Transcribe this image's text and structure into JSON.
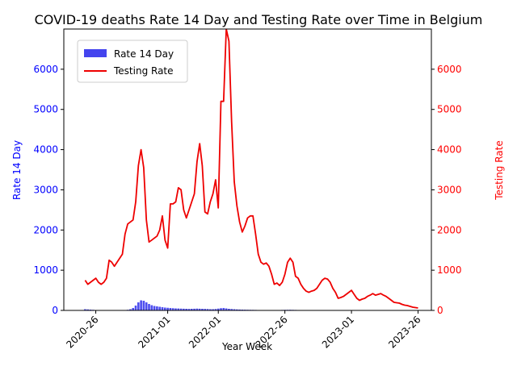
{
  "chart_data": {
    "type": "bar+line",
    "title": "COVID-19 deaths Rate 14 Day and Testing Rate over Time in Belgium",
    "xlabel": "Year Week",
    "ylabel_left": "Rate 14 Day",
    "ylabel_right": "Testing Rate",
    "ylim_left": [
      0,
      7000
    ],
    "ylim_right": [
      0,
      7000
    ],
    "y_ticks": [
      0,
      1000,
      2000,
      3000,
      4000,
      5000,
      6000
    ],
    "x_ticks": [
      {
        "label": "2020-26",
        "pos": 4
      },
      {
        "label": "2021-01",
        "pos": 31
      },
      {
        "label": "2022-01",
        "pos": 50
      },
      {
        "label": "2022-26",
        "pos": 75
      },
      {
        "label": "2023-01",
        "pos": 100
      },
      {
        "label": "2023-26",
        "pos": 125
      }
    ],
    "x_range": [
      -8,
      130
    ],
    "legend_position": "upper-left",
    "series": [
      {
        "name": "Rate 14 Day",
        "kind": "bar",
        "color": "#4444ee",
        "x": [
          0,
          1,
          2,
          3,
          4,
          5,
          6,
          7,
          8,
          9,
          10,
          11,
          12,
          13,
          14,
          15,
          16,
          17,
          18,
          19,
          20,
          21,
          22,
          23,
          24,
          25,
          26,
          27,
          28,
          29,
          30,
          31,
          32,
          33,
          34,
          35,
          36,
          37,
          38,
          39,
          40,
          41,
          42,
          43,
          44,
          45,
          46,
          47,
          48,
          49,
          50,
          51,
          52,
          53,
          54,
          55,
          56,
          57,
          58,
          59,
          60,
          61,
          62,
          63,
          64,
          65,
          66,
          67,
          68,
          69,
          70,
          71,
          72,
          73,
          74,
          75,
          76,
          77,
          78,
          79,
          80,
          81,
          82,
          83,
          84,
          85,
          86,
          87,
          88,
          89,
          90,
          91,
          92,
          93,
          94,
          95,
          96,
          97,
          98,
          99,
          100,
          101,
          102,
          103,
          104,
          105,
          106,
          107,
          108,
          109,
          110,
          111,
          112,
          113,
          114,
          115,
          116,
          117,
          118,
          119,
          120,
          121,
          122,
          123,
          124,
          125
        ],
        "values": [
          30,
          25,
          20,
          15,
          10,
          8,
          6,
          5,
          5,
          5,
          5,
          5,
          5,
          6,
          8,
          10,
          15,
          30,
          60,
          120,
          200,
          250,
          240,
          200,
          160,
          130,
          110,
          100,
          90,
          80,
          70,
          65,
          60,
          55,
          50,
          48,
          45,
          42,
          40,
          38,
          40,
          42,
          45,
          42,
          40,
          38,
          35,
          30,
          30,
          35,
          45,
          55,
          60,
          50,
          40,
          35,
          30,
          25,
          22,
          20,
          18,
          16,
          15,
          14,
          12,
          10,
          8,
          7,
          6,
          6,
          6,
          6,
          8,
          10,
          12,
          14,
          15,
          16,
          14,
          12,
          10,
          8,
          6,
          5,
          5,
          5,
          5,
          5,
          5,
          5,
          5,
          5,
          5,
          5,
          5,
          5,
          5,
          5,
          5,
          5,
          5,
          4,
          4,
          4,
          4,
          4,
          4,
          4,
          4,
          4,
          4,
          4,
          4,
          4,
          4,
          4,
          4,
          4,
          4,
          4,
          4,
          4,
          4,
          4,
          4,
          4
        ]
      },
      {
        "name": "Testing Rate",
        "kind": "line",
        "color": "#ee0000",
        "x": [
          0,
          1,
          2,
          3,
          4,
          5,
          6,
          7,
          8,
          9,
          10,
          11,
          12,
          13,
          14,
          15,
          16,
          17,
          18,
          19,
          20,
          21,
          22,
          23,
          24,
          25,
          26,
          27,
          28,
          29,
          30,
          31,
          32,
          33,
          34,
          35,
          36,
          37,
          38,
          39,
          40,
          41,
          42,
          43,
          44,
          45,
          46,
          47,
          48,
          49,
          50,
          51,
          52,
          53,
          54,
          55,
          56,
          57,
          58,
          59,
          60,
          61,
          62,
          63,
          64,
          65,
          66,
          67,
          68,
          69,
          70,
          71,
          72,
          73,
          74,
          75,
          76,
          77,
          78,
          79,
          80,
          81,
          82,
          83,
          84,
          85,
          86,
          87,
          88,
          89,
          90,
          91,
          92,
          93,
          94,
          95,
          96,
          97,
          98,
          99,
          100,
          101,
          102,
          103,
          104,
          105,
          106,
          107,
          108,
          109,
          110,
          111,
          112,
          113,
          114,
          115,
          116,
          117,
          118,
          119,
          120,
          121,
          122,
          123,
          124,
          125
        ],
        "values": [
          750,
          650,
          700,
          750,
          800,
          700,
          650,
          700,
          800,
          1250,
          1200,
          1100,
          1200,
          1300,
          1400,
          1900,
          2150,
          2200,
          2250,
          2700,
          3600,
          4000,
          3550,
          2250,
          1700,
          1750,
          1800,
          1850,
          2000,
          2350,
          1750,
          1550,
          2650,
          2650,
          2700,
          3050,
          3000,
          2500,
          2300,
          2500,
          2700,
          2900,
          3700,
          4150,
          3600,
          2450,
          2400,
          2700,
          2900,
          3250,
          2550,
          5200,
          5200,
          7000,
          6700,
          4700,
          3200,
          2600,
          2200,
          1950,
          2100,
          2300,
          2350,
          2350,
          1900,
          1400,
          1200,
          1150,
          1180,
          1100,
          900,
          650,
          680,
          620,
          700,
          900,
          1200,
          1300,
          1200,
          850,
          800,
          650,
          550,
          480,
          450,
          480,
          500,
          550,
          650,
          750,
          800,
          780,
          700,
          550,
          450,
          300,
          320,
          350,
          400,
          450,
          500,
          400,
          300,
          250,
          280,
          300,
          350,
          380,
          420,
          380,
          400,
          420,
          380,
          350,
          300,
          250,
          200,
          190,
          180,
          150,
          130,
          120,
          100,
          80,
          70,
          60
        ]
      }
    ]
  }
}
